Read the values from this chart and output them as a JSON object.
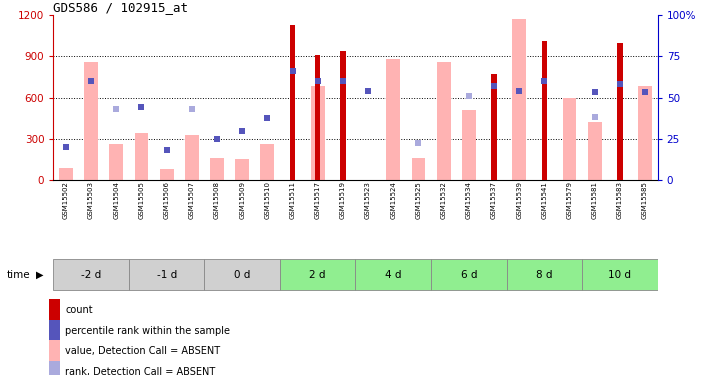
{
  "title": "GDS586 / 102915_at",
  "samples": [
    "GSM15502",
    "GSM15503",
    "GSM15504",
    "GSM15505",
    "GSM15506",
    "GSM15507",
    "GSM15508",
    "GSM15509",
    "GSM15510",
    "GSM15511",
    "GSM15517",
    "GSM15519",
    "GSM15523",
    "GSM15524",
    "GSM15525",
    "GSM15532",
    "GSM15534",
    "GSM15537",
    "GSM15539",
    "GSM15541",
    "GSM15579",
    "GSM15581",
    "GSM15583",
    "GSM15585"
  ],
  "time_groups": [
    {
      "label": "-2 d",
      "indices": [
        0,
        1,
        2
      ],
      "color": "#d0d0d0"
    },
    {
      "label": "-1 d",
      "indices": [
        3,
        4,
        5
      ],
      "color": "#d0d0d0"
    },
    {
      "label": "0 d",
      "indices": [
        6,
        7,
        8
      ],
      "color": "#d0d0d0"
    },
    {
      "label": "2 d",
      "indices": [
        9,
        10,
        11
      ],
      "color": "#90ee90"
    },
    {
      "label": "4 d",
      "indices": [
        12,
        13,
        14
      ],
      "color": "#90ee90"
    },
    {
      "label": "6 d",
      "indices": [
        15,
        16,
        17
      ],
      "color": "#90ee90"
    },
    {
      "label": "8 d",
      "indices": [
        18,
        19,
        20
      ],
      "color": "#90ee90"
    },
    {
      "label": "10 d",
      "indices": [
        21,
        22,
        23
      ],
      "color": "#90ee90"
    }
  ],
  "count_values": [
    0,
    0,
    0,
    0,
    0,
    0,
    0,
    0,
    0,
    1130,
    910,
    935,
    0,
    0,
    0,
    0,
    0,
    770,
    0,
    1010,
    0,
    0,
    1000,
    0
  ],
  "rank_values": [
    240,
    720,
    0,
    530,
    220,
    0,
    300,
    360,
    450,
    790,
    720,
    720,
    650,
    0,
    0,
    0,
    0,
    680,
    650,
    720,
    0,
    640,
    700,
    640
  ],
  "pink_bar_values": [
    90,
    860,
    260,
    340,
    80,
    330,
    160,
    155,
    265,
    0,
    680,
    0,
    0,
    880,
    160,
    860,
    510,
    0,
    1170,
    0,
    600,
    420,
    0,
    680
  ],
  "blue_sq_values": [
    240,
    720,
    520,
    530,
    220,
    520,
    300,
    360,
    450,
    0,
    0,
    0,
    0,
    0,
    270,
    0,
    610,
    0,
    650,
    0,
    0,
    460,
    0,
    0
  ],
  "ylim": [
    0,
    1200
  ],
  "y2lim": [
    0,
    100
  ],
  "yticks": [
    0,
    300,
    600,
    900,
    1200
  ],
  "y2ticks": [
    0,
    25,
    50,
    75,
    100
  ],
  "pink_color": "#ffb3b3",
  "red_color": "#cc0000",
  "blue_color": "#5555bb",
  "lightblue_color": "#aaaadd",
  "axis_left_color": "#cc0000",
  "axis_right_color": "#0000cc",
  "legend_items": [
    {
      "color": "#cc0000",
      "label": "count"
    },
    {
      "color": "#5555bb",
      "label": "percentile rank within the sample"
    },
    {
      "color": "#ffb3b3",
      "label": "value, Detection Call = ABSENT"
    },
    {
      "color": "#aaaadd",
      "label": "rank, Detection Call = ABSENT"
    }
  ]
}
